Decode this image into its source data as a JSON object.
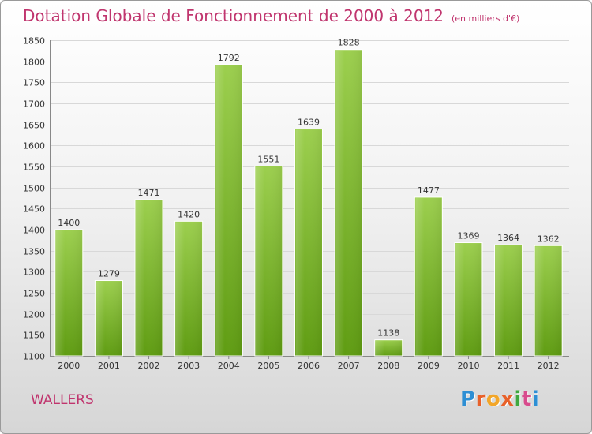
{
  "header": {
    "title": "Dotation Globale de Fonctionnement de 2000 à 2012",
    "subtitle": "(en milliers d'€)"
  },
  "footer": {
    "commune": "WALLERS",
    "logo_text": "Proxiti",
    "logo_colors": [
      "#2e8fd4",
      "#e8612a",
      "#f2a629",
      "#e8612a",
      "#3fa83f",
      "#d84b8d",
      "#2e8fd4"
    ]
  },
  "colors": {
    "title": "#c0356e",
    "bar_top": "#9ccf4e",
    "bar_bottom": "#5f9c12",
    "grid": "#d8d8d8"
  },
  "chart_data": {
    "type": "bar",
    "title": "Dotation Globale de Fonctionnement de 2000 à 2012",
    "subtitle": "(en milliers d'€)",
    "xlabel": "",
    "ylabel": "",
    "categories": [
      "2000",
      "2001",
      "2002",
      "2003",
      "2004",
      "2005",
      "2006",
      "2007",
      "2008",
      "2009",
      "2010",
      "2011",
      "2012"
    ],
    "values": [
      1400,
      1279,
      1471,
      1420,
      1792,
      1551,
      1639,
      1828,
      1138,
      1477,
      1369,
      1364,
      1362
    ],
    "ylim": [
      1100,
      1850
    ],
    "yticks": [
      1100,
      1150,
      1200,
      1250,
      1300,
      1350,
      1400,
      1450,
      1500,
      1550,
      1600,
      1650,
      1700,
      1750,
      1800,
      1850
    ],
    "grid": true,
    "legend": "none"
  }
}
